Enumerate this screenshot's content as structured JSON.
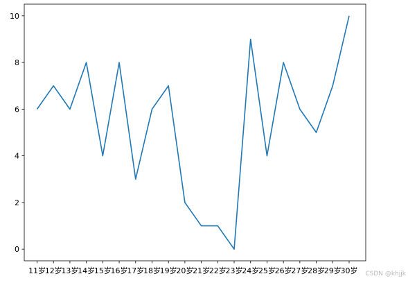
{
  "chart_data": {
    "type": "line",
    "title": "",
    "xlabel": "",
    "ylabel": "",
    "categories": [
      "11岁",
      "12岁",
      "13岁",
      "14岁",
      "15岁",
      "16岁",
      "17岁",
      "18岁",
      "19岁",
      "20岁",
      "21岁",
      "22岁",
      "23岁",
      "24岁",
      "25岁",
      "26岁",
      "27岁",
      "28岁",
      "29岁",
      "30岁"
    ],
    "series": [
      {
        "values": [
          6,
          7,
          6,
          8,
          4,
          8,
          3,
          6,
          7,
          2,
          1,
          1,
          0,
          9,
          4,
          8,
          6,
          5,
          7,
          10
        ]
      }
    ],
    "ylim": [
      -0.5,
      10.5
    ],
    "yticks": [
      0,
      2,
      4,
      6,
      8,
      10
    ],
    "grid": false,
    "colors": {
      "line": "#1f77b4",
      "axes": "#000000"
    }
  },
  "watermark": "CSDN @khjjk"
}
